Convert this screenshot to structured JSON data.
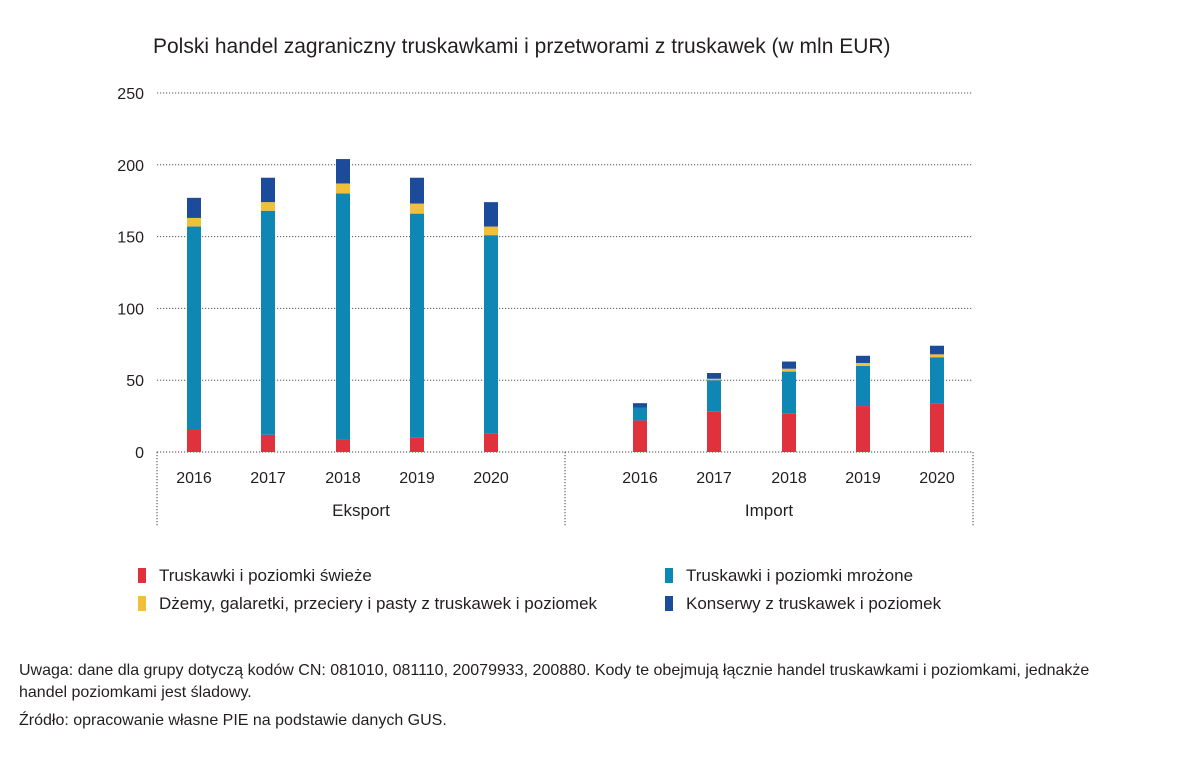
{
  "chart_data": {
    "type": "bar",
    "stacked": true,
    "title": "Polski handel zagraniczny truskawkami i przetworami z truskawek (w mln EUR)",
    "ylim": [
      0,
      250
    ],
    "yticks": [
      0,
      50,
      100,
      150,
      200,
      250
    ],
    "grid": true,
    "groups": [
      {
        "name": "Eksport",
        "categories": [
          "2016",
          "2017",
          "2018",
          "2019",
          "2020"
        ]
      },
      {
        "name": "Import",
        "categories": [
          "2016",
          "2017",
          "2018",
          "2019",
          "2020"
        ]
      }
    ],
    "series": [
      {
        "name": "Truskawki i poziomki świeże",
        "color": "#e0323c",
        "values": [
          [
            16,
            12,
            9,
            10,
            13
          ],
          [
            22,
            28,
            27,
            32,
            34
          ]
        ]
      },
      {
        "name": "Truskawki i poziomki mrożone",
        "color": "#0e87b5",
        "values": [
          [
            141,
            156,
            171,
            156,
            138
          ],
          [
            9,
            22,
            29,
            28,
            32
          ]
        ]
      },
      {
        "name": "Dżemy, galaretki, przeciery i pasty z truskawek i poziomek",
        "color": "#f1c03a",
        "values": [
          [
            6,
            6,
            7,
            7,
            6
          ],
          [
            0,
            1,
            2,
            2,
            2
          ]
        ]
      },
      {
        "name": "Konserwy z truskawek i poziomek",
        "color": "#1d4b9b",
        "values": [
          [
            14,
            17,
            17,
            18,
            17
          ],
          [
            3,
            4,
            5,
            5,
            6
          ]
        ]
      }
    ],
    "legend": {
      "placement": "bottom",
      "order": [
        "Truskawki i poziomki świeże",
        "Truskawki i poziomki mrożone",
        "Dżemy, galaretki, przeciery i pasty z truskawek i poziomek",
        "Konserwy z truskawek i poziomek"
      ]
    }
  },
  "notes": {
    "uwaga": "Uwaga: dane dla grupy dotyczą kodów CN: 081010, 081110, 20079933, 200880. Kody te obejmują łącznie handel truskawkami i po­ziomkami, jednakże handel poziomkami jest śladowy.",
    "zrodlo": "Źródło: opracowanie własne PIE na podstawie danych GUS."
  }
}
